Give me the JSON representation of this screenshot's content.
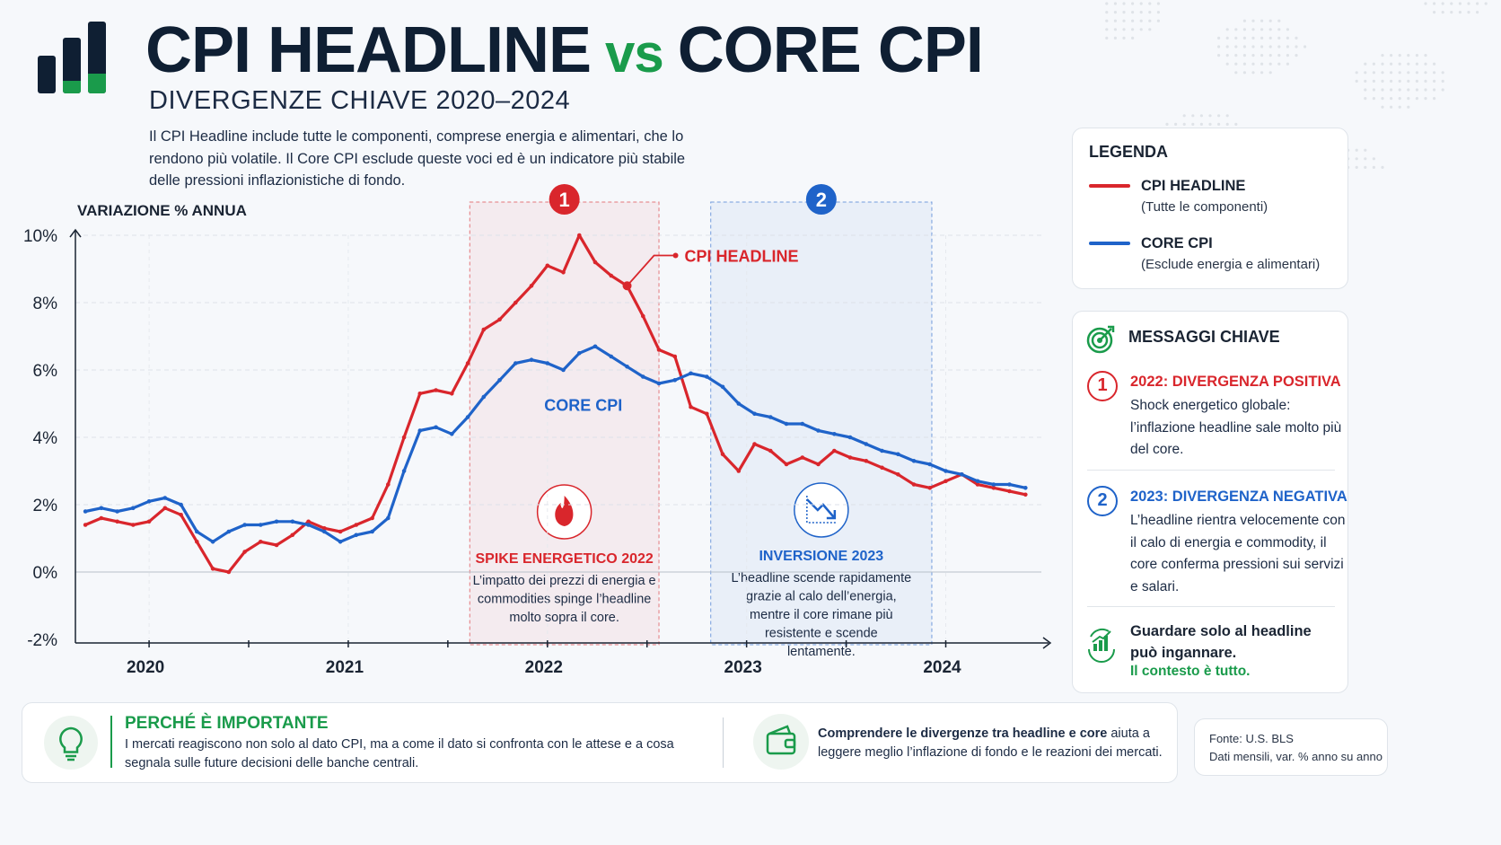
{
  "header": {
    "title_part1": "CPI HEADLINE",
    "title_vs": "vs",
    "title_part2": "CORE CPI",
    "subtitle": "DIVERGENZE CHIAVE 2020–2024",
    "intro": "Il CPI Headline include tutte le componenti, comprese energia e alimentari, che lo rendono più volatile. Il Core CPI esclude queste voci ed è un indicatore più stabile delle pressioni inflazionistiche di fondo."
  },
  "colors": {
    "headline": "#d9262c",
    "core": "#1f63c9",
    "accent_green": "#1a9b4b",
    "navy": "#0f1f33"
  },
  "chart_data": {
    "type": "line",
    "ylabel": "VARIAZIONE % ANNUA",
    "ylim": [
      -2,
      10
    ],
    "yticks": [
      "10%",
      "8%",
      "6%",
      "4%",
      "2%",
      "0%",
      "-2%"
    ],
    "xticks": [
      "2020",
      "2021",
      "2022",
      "2023",
      "2024"
    ],
    "xlim": [
      2019.65,
      2024.5
    ],
    "grid": true,
    "series": [
      {
        "name": "CPI HEADLINE",
        "color": "#d9262c",
        "x": [
          2019.7,
          2019.78,
          2019.86,
          2019.94,
          2020.02,
          2020.1,
          2020.18,
          2020.26,
          2020.34,
          2020.42,
          2020.5,
          2020.58,
          2020.66,
          2020.74,
          2020.82,
          2020.9,
          2020.98,
          2021.06,
          2021.14,
          2021.22,
          2021.3,
          2021.38,
          2021.46,
          2021.54,
          2021.62,
          2021.7,
          2021.78,
          2021.86,
          2021.94,
          2022.02,
          2022.1,
          2022.18,
          2022.26,
          2022.34,
          2022.42,
          2022.5,
          2022.58,
          2022.66,
          2022.74,
          2022.82,
          2022.9,
          2022.98,
          2023.06,
          2023.14,
          2023.22,
          2023.3,
          2023.38,
          2023.46,
          2023.54,
          2023.62,
          2023.7,
          2023.78,
          2023.86,
          2023.94,
          2024.02,
          2024.1,
          2024.18,
          2024.26,
          2024.34,
          2024.42
        ],
        "values": [
          1.4,
          1.6,
          1.5,
          1.4,
          1.5,
          1.9,
          1.7,
          0.9,
          0.1,
          0.0,
          0.6,
          0.9,
          0.8,
          1.1,
          1.5,
          1.3,
          1.2,
          1.4,
          1.6,
          2.6,
          4.0,
          5.3,
          5.4,
          5.3,
          6.2,
          7.2,
          7.5,
          8.0,
          8.5,
          9.1,
          8.9,
          10.0,
          9.2,
          8.8,
          8.5,
          7.6,
          6.6,
          6.4,
          4.9,
          4.7,
          3.5,
          3.0,
          3.8,
          3.6,
          3.2,
          3.4,
          3.2,
          3.6,
          3.4,
          3.3,
          3.1,
          2.9,
          2.6,
          2.5,
          2.7,
          2.9,
          2.6,
          2.5,
          2.4,
          2.3
        ]
      },
      {
        "name": "CORE CPI",
        "color": "#1f63c9",
        "x": [
          2019.7,
          2019.78,
          2019.86,
          2019.94,
          2020.02,
          2020.1,
          2020.18,
          2020.26,
          2020.34,
          2020.42,
          2020.5,
          2020.58,
          2020.66,
          2020.74,
          2020.82,
          2020.9,
          2020.98,
          2021.06,
          2021.14,
          2021.22,
          2021.3,
          2021.38,
          2021.46,
          2021.54,
          2021.62,
          2021.7,
          2021.78,
          2021.86,
          2021.94,
          2022.02,
          2022.1,
          2022.18,
          2022.26,
          2022.34,
          2022.42,
          2022.5,
          2022.58,
          2022.66,
          2022.74,
          2022.82,
          2022.9,
          2022.98,
          2023.06,
          2023.14,
          2023.22,
          2023.3,
          2023.38,
          2023.46,
          2023.54,
          2023.62,
          2023.7,
          2023.78,
          2023.86,
          2023.94,
          2024.02,
          2024.1,
          2024.18,
          2024.26,
          2024.34,
          2024.42
        ],
        "values": [
          1.8,
          1.9,
          1.8,
          1.9,
          2.1,
          2.2,
          2.0,
          1.2,
          0.9,
          1.2,
          1.4,
          1.4,
          1.5,
          1.5,
          1.4,
          1.2,
          0.9,
          1.1,
          1.2,
          1.6,
          3.0,
          4.2,
          4.3,
          4.1,
          4.6,
          5.2,
          5.7,
          6.2,
          6.3,
          6.2,
          6.0,
          6.5,
          6.7,
          6.4,
          6.1,
          5.8,
          5.6,
          5.7,
          5.9,
          5.8,
          5.5,
          5.0,
          4.7,
          4.6,
          4.4,
          4.4,
          4.2,
          4.1,
          4.0,
          3.8,
          3.6,
          3.5,
          3.3,
          3.2,
          3.0,
          2.9,
          2.7,
          2.6,
          2.6,
          2.5
        ]
      }
    ],
    "annotations": [
      {
        "label": "CPI HEADLINE",
        "color": "#d9262c"
      },
      {
        "label": "CORE CPI",
        "color": "#1f63c9"
      }
    ],
    "regions": [
      {
        "number": "1",
        "from": 2021.63,
        "to": 2022.58,
        "color": "#d9262c",
        "title": "SPIKE ENERGETICO 2022",
        "text": "L’impatto dei prezzi di energia e commodities spinge l’headline molto sopra il core."
      },
      {
        "number": "2",
        "from": 2022.84,
        "to": 2023.95,
        "color": "#1f63c9",
        "title": "INVERSIONE 2023",
        "text": "L’headline scende rapidamente grazie al calo dell’energia, mentre il core rimane più resistente e scende lentamente."
      }
    ]
  },
  "legend": {
    "title": "LEGENDA",
    "items": [
      {
        "label": "CPI HEADLINE",
        "sub": "(Tutte le componenti)"
      },
      {
        "label": "CORE CPI",
        "sub": "(Esclude energia e alimentari)"
      }
    ]
  },
  "messages": {
    "title": "MESSAGGI CHIAVE",
    "icon": "target-icon",
    "items": [
      {
        "num": "1",
        "title": "2022: DIVERGENZA POSITIVA",
        "text": "Shock energetico globale: l’inflazione headline sale molto più del core."
      },
      {
        "num": "2",
        "title": "2023: DIVERGENZA NEGATIVA",
        "text": "L’headline rientra velocemente con il calo di energia e commodity, il core conferma pressioni sui servizi e salari."
      }
    ],
    "final_bold": "Guardare solo al headline può ingannare.",
    "final_green": "Il contesto è tutto."
  },
  "footer": {
    "why_title": "PERCHÉ È IMPORTANTE",
    "why_text": "I mercati reagiscono non solo al dato CPI, ma a come il dato si confronta con le attese e a cosa segnala sulle future decisioni delle banche centrali.",
    "understand_bold": "Comprendere le divergenze tra headline e core",
    "understand_rest": " aiuta a leggere meglio l’inflazione di fondo e le reazioni dei mercati.",
    "source_line1": "Fonte: U.S. BLS",
    "source_line2": "Dati mensili, var. % anno su anno"
  }
}
